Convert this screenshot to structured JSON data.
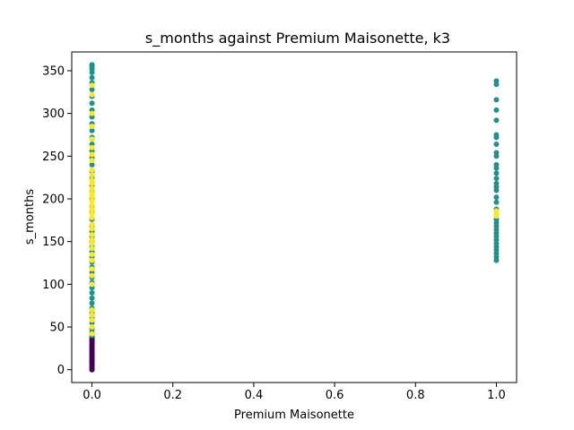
{
  "chart_data": {
    "type": "scatter",
    "title": "s_months against Premium Maisonette, k3",
    "xlabel": "Premium Maisonette",
    "ylabel": "s_months",
    "xlim": [
      -0.05,
      1.05
    ],
    "ylim": [
      -15,
      372
    ],
    "grid": false,
    "legend": "none",
    "x_ticks": [
      {
        "value": 0.0,
        "label": "0.0"
      },
      {
        "value": 0.2,
        "label": "0.2"
      },
      {
        "value": 0.4,
        "label": "0.4"
      },
      {
        "value": 0.6,
        "label": "0.6"
      },
      {
        "value": 0.8,
        "label": "0.8"
      },
      {
        "value": 1.0,
        "label": "1.0"
      }
    ],
    "y_ticks": [
      {
        "value": 0,
        "label": "0"
      },
      {
        "value": 50,
        "label": "50"
      },
      {
        "value": 100,
        "label": "100"
      },
      {
        "value": 150,
        "label": "150"
      },
      {
        "value": 200,
        "label": "200"
      },
      {
        "value": 250,
        "label": "250"
      },
      {
        "value": 300,
        "label": "300"
      },
      {
        "value": 350,
        "label": "350"
      }
    ],
    "cluster_colors": {
      "purple": "#440154",
      "teal": "#21918c",
      "yellow": "#fde725"
    },
    "series": [
      {
        "color": "#440154",
        "points": [
          [
            0,
            0
          ],
          [
            0,
            2
          ],
          [
            0,
            4
          ],
          [
            0,
            6
          ],
          [
            0,
            8
          ],
          [
            0,
            10
          ],
          [
            0,
            12
          ],
          [
            0,
            14
          ],
          [
            0,
            16
          ],
          [
            0,
            18
          ],
          [
            0,
            20
          ],
          [
            0,
            22
          ],
          [
            0,
            24
          ],
          [
            0,
            26
          ],
          [
            0,
            28
          ],
          [
            0,
            30
          ],
          [
            0,
            32
          ],
          [
            0,
            34
          ],
          [
            0,
            36
          ],
          [
            0,
            38
          ]
        ]
      },
      {
        "color": "#21918c",
        "points": [
          [
            0,
            40
          ],
          [
            0,
            44
          ],
          [
            0,
            48
          ],
          [
            0,
            55
          ],
          [
            0,
            60
          ],
          [
            0,
            66
          ],
          [
            0,
            72
          ],
          [
            0,
            78
          ],
          [
            0,
            84
          ],
          [
            0,
            90
          ],
          [
            0,
            96
          ],
          [
            0,
            102
          ],
          [
            0,
            108
          ],
          [
            0,
            114
          ],
          [
            0,
            120
          ],
          [
            0,
            126
          ],
          [
            0,
            132
          ],
          [
            0,
            138
          ],
          [
            0,
            144
          ],
          [
            0,
            150
          ],
          [
            0,
            156
          ],
          [
            0,
            162
          ],
          [
            0,
            168
          ],
          [
            0,
            176
          ],
          [
            0,
            184
          ],
          [
            0,
            192
          ],
          [
            0,
            200
          ],
          [
            0,
            208
          ],
          [
            0,
            216
          ],
          [
            0,
            224
          ],
          [
            0,
            232
          ],
          [
            0,
            240
          ],
          [
            0,
            248
          ],
          [
            0,
            256
          ],
          [
            0,
            264
          ],
          [
            0,
            272
          ],
          [
            0,
            280
          ],
          [
            0,
            288
          ],
          [
            0,
            296
          ],
          [
            0,
            304
          ],
          [
            0,
            312
          ],
          [
            0,
            320
          ],
          [
            0,
            328
          ],
          [
            0,
            336
          ],
          [
            0,
            342
          ],
          [
            0,
            348
          ],
          [
            0,
            352
          ],
          [
            0,
            355
          ],
          [
            0,
            357
          ],
          [
            1,
            128
          ],
          [
            1,
            132
          ],
          [
            1,
            136
          ],
          [
            1,
            140
          ],
          [
            1,
            144
          ],
          [
            1,
            148
          ],
          [
            1,
            152
          ],
          [
            1,
            156
          ],
          [
            1,
            160
          ],
          [
            1,
            164
          ],
          [
            1,
            168
          ],
          [
            1,
            172
          ],
          [
            1,
            176
          ],
          [
            1,
            188
          ],
          [
            1,
            196
          ],
          [
            1,
            202
          ],
          [
            1,
            210
          ],
          [
            1,
            214
          ],
          [
            1,
            218
          ],
          [
            1,
            224
          ],
          [
            1,
            230
          ],
          [
            1,
            236
          ],
          [
            1,
            240
          ],
          [
            1,
            250
          ],
          [
            1,
            254
          ],
          [
            1,
            264
          ],
          [
            1,
            272
          ],
          [
            1,
            275
          ],
          [
            1,
            292
          ],
          [
            1,
            304
          ],
          [
            1,
            316
          ],
          [
            1,
            334
          ],
          [
            1,
            338
          ]
        ]
      },
      {
        "color": "#fde725",
        "points": [
          [
            0,
            42
          ],
          [
            0,
            50
          ],
          [
            0,
            58
          ],
          [
            0,
            64
          ],
          [
            0,
            70
          ],
          [
            0,
            100
          ],
          [
            0,
            110
          ],
          [
            0,
            118
          ],
          [
            0,
            128
          ],
          [
            0,
            135
          ],
          [
            0,
            142
          ],
          [
            0,
            148
          ],
          [
            0,
            152
          ],
          [
            0,
            158
          ],
          [
            0,
            165
          ],
          [
            0,
            170
          ],
          [
            0,
            178
          ],
          [
            0,
            183
          ],
          [
            0,
            188
          ],
          [
            0,
            193
          ],
          [
            0,
            198
          ],
          [
            0,
            203
          ],
          [
            0,
            207
          ],
          [
            0,
            212
          ],
          [
            0,
            218
          ],
          [
            0,
            222
          ],
          [
            0,
            228
          ],
          [
            0,
            234
          ],
          [
            0,
            245
          ],
          [
            0,
            252
          ],
          [
            0,
            260
          ],
          [
            0,
            270
          ],
          [
            0,
            285
          ],
          [
            0,
            300
          ],
          [
            0,
            322
          ],
          [
            0,
            333
          ],
          [
            1,
            180
          ],
          [
            1,
            182
          ],
          [
            1,
            184
          ],
          [
            1,
            186
          ]
        ]
      }
    ]
  }
}
